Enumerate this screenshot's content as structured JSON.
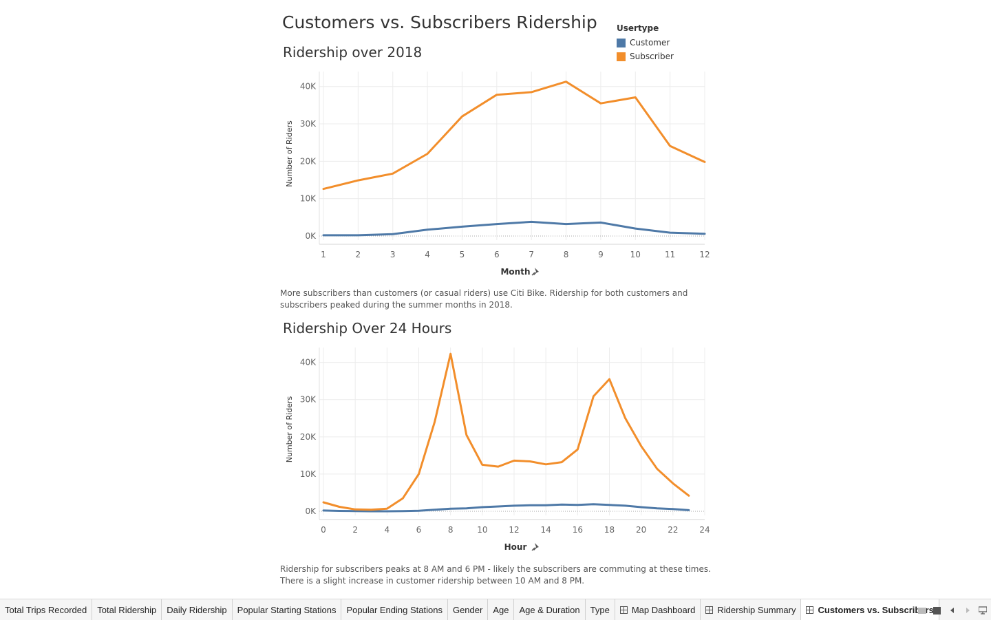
{
  "dashboard": {
    "title": "Customers vs. Subscribers Ridership"
  },
  "legend": {
    "title": "Usertype",
    "items": [
      {
        "label": "Customer",
        "color": "#4e79a7"
      },
      {
        "label": "Subscriber",
        "color": "#f28e2b"
      }
    ]
  },
  "chart_data": [
    {
      "type": "line",
      "title": "Ridership over 2018",
      "xlabel": "Month",
      "ylabel": "Number of Riders",
      "x": [
        1,
        2,
        3,
        4,
        5,
        6,
        7,
        8,
        9,
        10,
        11,
        12
      ],
      "xticks": [
        1,
        2,
        3,
        4,
        5,
        6,
        7,
        8,
        9,
        10,
        11,
        12
      ],
      "yticks": [
        0,
        10000,
        20000,
        30000,
        40000
      ],
      "ytick_labels": [
        "0K",
        "10K",
        "20K",
        "30K",
        "40K"
      ],
      "ylim": [
        0,
        44000
      ],
      "series": [
        {
          "name": "Customer",
          "color": "#4e79a7",
          "values": [
            200,
            200,
            500,
            1700,
            2500,
            3200,
            3800,
            3200,
            3600,
            2000,
            900,
            600
          ]
        },
        {
          "name": "Subscriber",
          "color": "#f28e2b",
          "values": [
            12600,
            14900,
            16700,
            22000,
            32000,
            37800,
            38500,
            41300,
            35500,
            37100,
            24100,
            19800
          ]
        }
      ],
      "caption": "More subscribers than customers (or casual riders) use Citi Bike. Ridership for both customers and subscribers peaked during the summer months in 2018."
    },
    {
      "type": "line",
      "title": "Ridership Over 24 Hours",
      "xlabel": "Hour",
      "ylabel": "Number of Riders",
      "x": [
        0,
        1,
        2,
        3,
        4,
        5,
        6,
        7,
        8,
        9,
        10,
        11,
        12,
        13,
        14,
        15,
        16,
        17,
        18,
        19,
        20,
        21,
        22,
        23
      ],
      "xticks": [
        0,
        2,
        4,
        6,
        8,
        10,
        12,
        14,
        16,
        18,
        20,
        22,
        24
      ],
      "yticks": [
        0,
        10000,
        20000,
        30000,
        40000
      ],
      "ytick_labels": [
        "0K",
        "10K",
        "20K",
        "30K",
        "40K"
      ],
      "ylim": [
        0,
        44000
      ],
      "series": [
        {
          "name": "Customer",
          "color": "#4e79a7",
          "values": [
            200,
            100,
            50,
            0,
            0,
            50,
            150,
            400,
            700,
            800,
            1100,
            1300,
            1500,
            1600,
            1600,
            1800,
            1700,
            1900,
            1700,
            1500,
            1100,
            800,
            600,
            300
          ]
        },
        {
          "name": "Subscriber",
          "color": "#f28e2b",
          "values": [
            2400,
            1200,
            500,
            400,
            700,
            3500,
            10000,
            24000,
            42300,
            20500,
            12500,
            12000,
            13600,
            13400,
            12600,
            13200,
            16600,
            30900,
            35500,
            25000,
            17500,
            11400,
            7500,
            4200
          ]
        }
      ],
      "caption": "Ridership for subscribers peaks at 8 AM and 6 PM - likely the subscribers are commuting at these times. There is a slight increase in customer ridership between 10 AM and 8 PM."
    }
  ],
  "tabs": [
    {
      "label": "Total Trips Recorded",
      "icon": ""
    },
    {
      "label": "Total Ridership",
      "icon": ""
    },
    {
      "label": "Daily Ridership",
      "icon": ""
    },
    {
      "label": "Popular Starting Stations",
      "icon": ""
    },
    {
      "label": "Popular Ending Stations",
      "icon": ""
    },
    {
      "label": "Gender",
      "icon": ""
    },
    {
      "label": "Age",
      "icon": ""
    },
    {
      "label": "Age & Duration",
      "icon": ""
    },
    {
      "label": "Type",
      "icon": ""
    },
    {
      "label": "Map Dashboard",
      "icon": "dashboard-grid-icon"
    },
    {
      "label": "Ridership Summary",
      "icon": "dashboard-grid-icon"
    },
    {
      "label": "Customers vs. Subscribers",
      "icon": "dashboard-grid-icon",
      "active": true
    }
  ]
}
